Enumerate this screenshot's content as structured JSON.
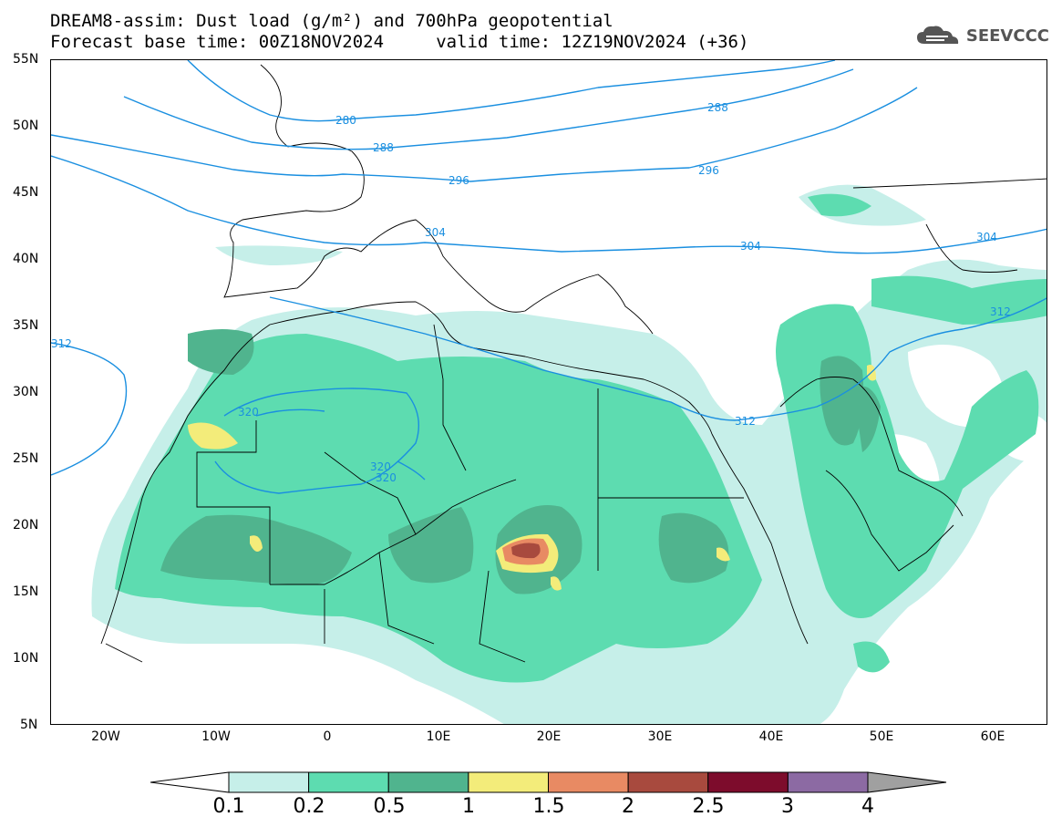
{
  "title_line1": "DREAM8-assim: Dust load (g/m²) and 700hPa geopotential",
  "title_line2": "Forecast base time: 00Z18NOV2024     valid time: 12Z19NOV2024 (+36)",
  "logo_text": "SEEVCCC",
  "lat_labels": [
    "55N",
    "50N",
    "45N",
    "40N",
    "35N",
    "30N",
    "25N",
    "20N",
    "15N",
    "10N",
    "5N"
  ],
  "lon_labels": [
    "20W",
    "10W",
    "0",
    "10E",
    "20E",
    "30E",
    "40E",
    "50E",
    "60E"
  ],
  "colorbar": {
    "labels": [
      "0.1",
      "0.2",
      "0.5",
      "1",
      "1.5",
      "2",
      "2.5",
      "3",
      "4"
    ],
    "colors": [
      "#c6efe9",
      "#5ddcb0",
      "#50b48e",
      "#f3ec7a",
      "#e88a63",
      "#a84a3e",
      "#7d0c2c",
      "#8c6aa3",
      "#a0a0a0"
    ]
  },
  "contour_labels": [
    "280",
    "288",
    "288",
    "296",
    "296",
    "304",
    "304",
    "304",
    "312",
    "312",
    "312",
    "320",
    "320",
    "320"
  ],
  "colors": {
    "contour": "#1a8fe0",
    "boundary": "#000000"
  }
}
